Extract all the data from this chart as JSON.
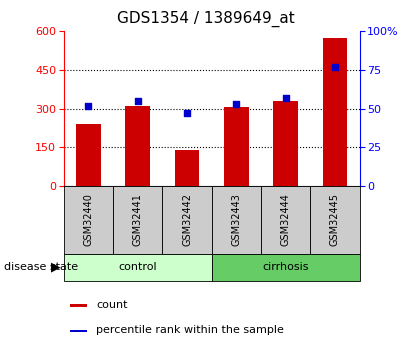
{
  "title": "GDS1354 / 1389649_at",
  "samples": [
    "GSM32440",
    "GSM32441",
    "GSM32442",
    "GSM32443",
    "GSM32444",
    "GSM32445"
  ],
  "counts": [
    240,
    310,
    140,
    305,
    330,
    575
  ],
  "percentiles": [
    52,
    55,
    47,
    53,
    57,
    77
  ],
  "groups": [
    "control",
    "control",
    "control",
    "cirrhosis",
    "cirrhosis",
    "cirrhosis"
  ],
  "ylim_left": [
    0,
    600
  ],
  "ylim_right": [
    0,
    100
  ],
  "yticks_left": [
    0,
    150,
    300,
    450,
    600
  ],
  "yticks_right": [
    0,
    25,
    50,
    75,
    100
  ],
  "bar_color": "#cc0000",
  "point_color": "#0000cc",
  "control_color": "#ccffcc",
  "cirrhosis_color": "#66cc66",
  "sample_box_color": "#cccccc",
  "title_fontsize": 11,
  "tick_fontsize": 8,
  "bar_width": 0.5,
  "legend_count_label": "count",
  "legend_pct_label": "percentile rank within the sample",
  "disease_state_label": "disease state"
}
